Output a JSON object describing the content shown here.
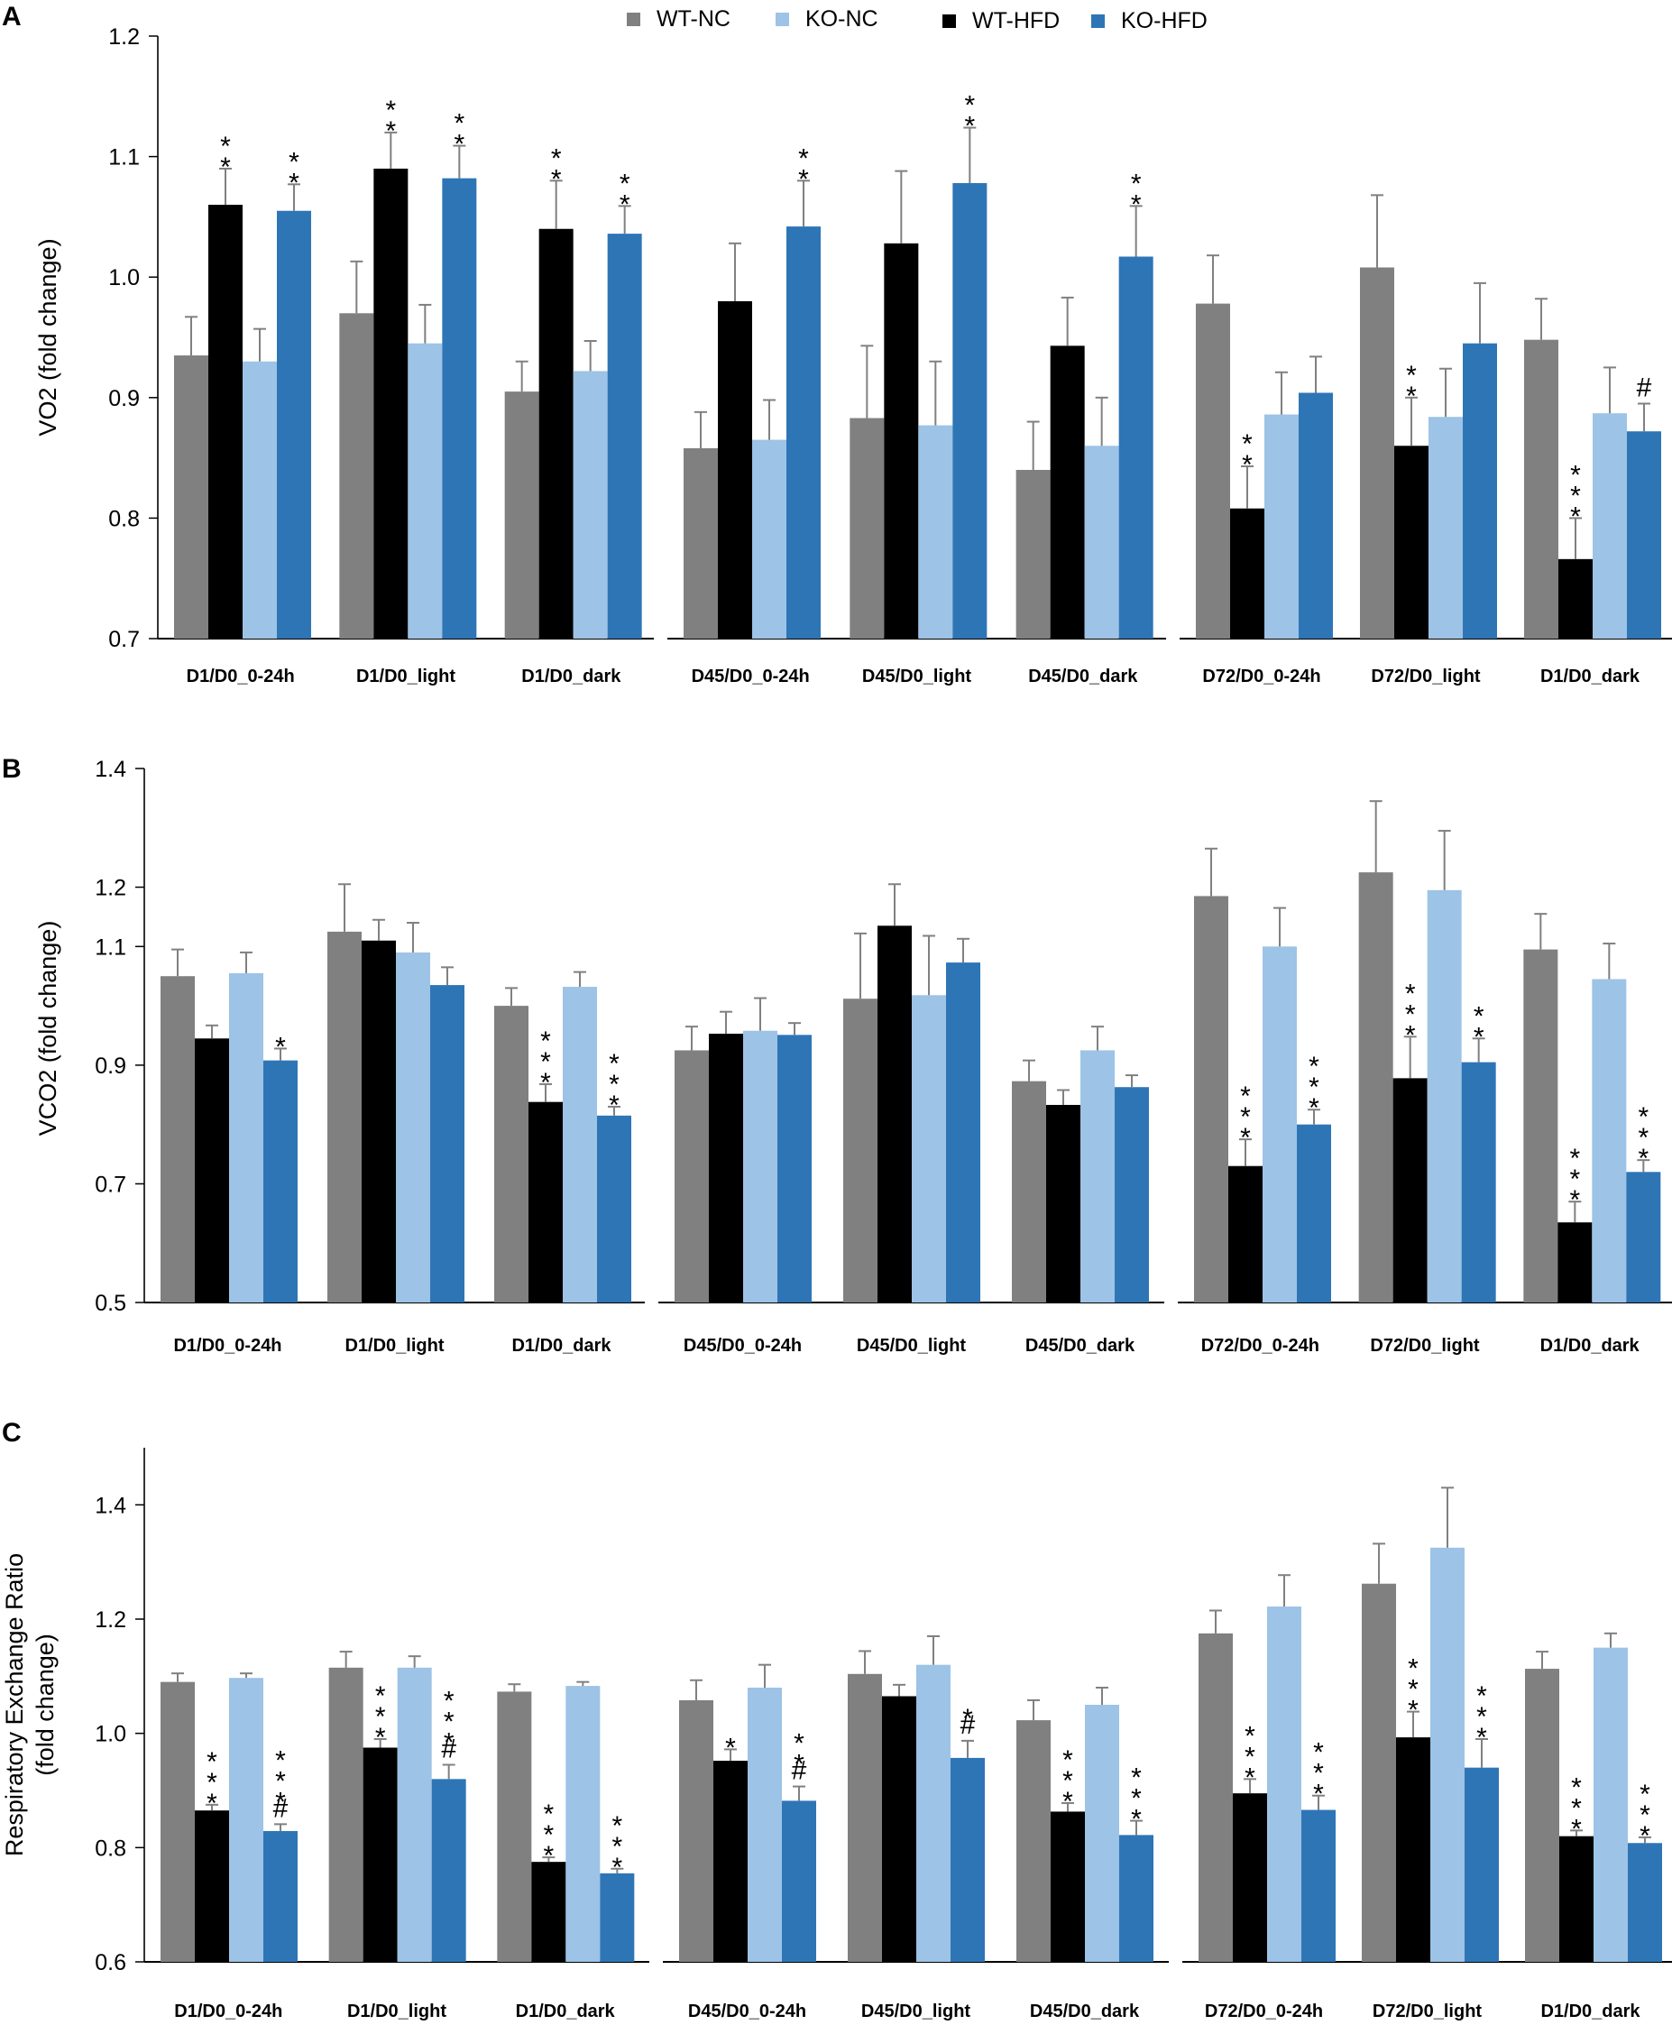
{
  "legend": [
    {
      "name": "WT-NC",
      "color": "#808080"
    },
    {
      "name": "KO-NC",
      "color": "#9DC3E6"
    },
    {
      "name": "WT-HFD",
      "color": "#000000"
    },
    {
      "name": "KO-HFD",
      "color": "#2E75B6"
    }
  ],
  "chart_data": [
    {
      "type": "bar",
      "panel": "A",
      "ylabel": "VO2 (fold change)",
      "ylim": [
        0.7,
        1.2
      ],
      "yticks": [
        "0.7",
        "0.8",
        "0.9",
        "1.0",
        "1.1",
        "1.2"
      ],
      "series_order": [
        "WT-NC",
        "WT-HFD",
        "KO-NC",
        "KO-HFD"
      ],
      "groups": [
        {
          "categories": [
            {
              "label": "D1/D0_0-24h",
              "values": [
                0.935,
                1.06,
                0.93,
                1.055
              ],
              "errors": [
                0.032,
                0.03,
                0.027,
                0.022
              ],
              "sig": [
                "",
                "**",
                "",
                "**"
              ]
            },
            {
              "label": "D1/D0_light",
              "values": [
                0.97,
                1.09,
                0.945,
                1.082
              ],
              "errors": [
                0.043,
                0.03,
                0.032,
                0.027
              ],
              "sig": [
                "",
                "**",
                "",
                "**"
              ]
            },
            {
              "label": "D1/D0_dark",
              "values": [
                0.905,
                1.04,
                0.922,
                1.036
              ],
              "errors": [
                0.025,
                0.04,
                0.025,
                0.023
              ],
              "sig": [
                "",
                "**",
                "",
                "**"
              ]
            }
          ]
        },
        {
          "categories": [
            {
              "label": "D45/D0_0-24h",
              "values": [
                0.858,
                0.98,
                0.865,
                1.042
              ],
              "errors": [
                0.03,
                0.048,
                0.033,
                0.038
              ],
              "sig": [
                "",
                "",
                "",
                "**"
              ]
            },
            {
              "label": "D45/D0_light",
              "values": [
                0.883,
                1.028,
                0.877,
                1.078
              ],
              "errors": [
                0.06,
                0.06,
                0.053,
                0.046
              ],
              "sig": [
                "",
                "",
                "",
                "**"
              ]
            },
            {
              "label": "D45/D0_dark",
              "values": [
                0.84,
                0.943,
                0.86,
                1.017
              ],
              "errors": [
                0.04,
                0.04,
                0.04,
                0.042
              ],
              "sig": [
                "",
                "",
                "",
                "**"
              ]
            }
          ]
        },
        {
          "categories": [
            {
              "label": "D72/D0_0-24h",
              "values": [
                0.978,
                0.808,
                0.886,
                0.904
              ],
              "errors": [
                0.04,
                0.035,
                0.035,
                0.03
              ],
              "sig": [
                "",
                "**",
                "",
                ""
              ]
            },
            {
              "label": "D72/D0_light",
              "values": [
                1.008,
                0.86,
                0.884,
                0.945
              ],
              "errors": [
                0.06,
                0.04,
                0.04,
                0.05
              ],
              "sig": [
                "",
                "**",
                "",
                ""
              ]
            },
            {
              "label": "D1/D0_dark",
              "values": [
                0.948,
                0.766,
                0.887,
                0.872
              ],
              "errors": [
                0.034,
                0.034,
                0.038,
                0.023
              ],
              "sig": [
                "",
                "***",
                "",
                "#"
              ]
            }
          ]
        }
      ]
    },
    {
      "type": "bar",
      "panel": "B",
      "ylabel": "VCO2 (fold change)",
      "ylim": [
        0.5,
        1.4
      ],
      "yticks": [
        "0.5",
        "0.7",
        "0.9",
        "1.1",
        "1.2",
        "1.4"
      ],
      "series_order": [
        "WT-NC",
        "WT-HFD",
        "KO-NC",
        "KO-HFD"
      ],
      "groups": [
        {
          "categories": [
            {
              "label": "D1/D0_0-24h",
              "values": [
                1.05,
                0.945,
                1.055,
                0.908
              ],
              "errors": [
                0.045,
                0.022,
                0.035,
                0.02
              ],
              "sig": [
                "",
                "",
                "",
                "*"
              ]
            },
            {
              "label": "D1/D0_light",
              "values": [
                1.125,
                1.11,
                1.09,
                1.035
              ],
              "errors": [
                0.08,
                0.035,
                0.05,
                0.03
              ],
              "sig": [
                "",
                "",
                "",
                ""
              ]
            },
            {
              "label": "D1/D0_dark",
              "values": [
                1.0,
                0.838,
                1.032,
                0.815
              ],
              "errors": [
                0.03,
                0.03,
                0.025,
                0.015
              ],
              "sig": [
                "",
                "***",
                "",
                "***"
              ]
            }
          ]
        },
        {
          "categories": [
            {
              "label": "D45/D0_0-24h",
              "values": [
                0.925,
                0.953,
                0.958,
                0.951
              ],
              "errors": [
                0.04,
                0.037,
                0.055,
                0.02
              ],
              "sig": [
                "",
                "",
                "",
                ""
              ]
            },
            {
              "label": "D45/D0_light",
              "values": [
                1.012,
                1.135,
                1.018,
                1.073
              ],
              "errors": [
                0.11,
                0.07,
                0.1,
                0.04
              ],
              "sig": [
                "",
                "",
                "",
                ""
              ]
            },
            {
              "label": "D45/D0_dark",
              "values": [
                0.873,
                0.833,
                0.925,
                0.863
              ],
              "errors": [
                0.035,
                0.025,
                0.04,
                0.02
              ],
              "sig": [
                "",
                "",
                "",
                ""
              ]
            }
          ]
        },
        {
          "categories": [
            {
              "label": "D72/D0_0-24h",
              "values": [
                1.185,
                0.73,
                1.1,
                0.8
              ],
              "errors": [
                0.08,
                0.045,
                0.065,
                0.025
              ],
              "sig": [
                "",
                "***",
                "",
                "***"
              ]
            },
            {
              "label": "D72/D0_light",
              "values": [
                1.225,
                0.878,
                1.195,
                0.905
              ],
              "errors": [
                0.12,
                0.07,
                0.1,
                0.04
              ],
              "sig": [
                "",
                "***",
                "",
                "**"
              ]
            },
            {
              "label": "D1/D0_dark",
              "values": [
                1.095,
                0.635,
                1.045,
                0.72
              ],
              "errors": [
                0.06,
                0.035,
                0.06,
                0.02
              ],
              "sig": [
                "",
                "***",
                "",
                "***"
              ]
            }
          ]
        }
      ]
    },
    {
      "type": "bar",
      "panel": "C",
      "ylabel": [
        "Respiratory Exchange  Ratio",
        "(fold change)"
      ],
      "ylim": [
        0.6,
        1.5
      ],
      "yticks": [
        "0.6",
        "0.8",
        "1.0",
        "1.2",
        "1.4"
      ],
      "series_order": [
        "WT-NC",
        "WT-HFD",
        "KO-NC",
        "KO-HFD"
      ],
      "groups": [
        {
          "categories": [
            {
              "label": "D1/D0_0-24h",
              "values": [
                1.09,
                0.865,
                1.097,
                0.829
              ],
              "errors": [
                0.015,
                0.01,
                0.008,
                0.012
              ],
              "sig": [
                "",
                "***",
                "",
                "***#"
              ]
            },
            {
              "label": "D1/D0_light",
              "values": [
                1.115,
                0.975,
                1.115,
                0.92
              ],
              "errors": [
                0.028,
                0.015,
                0.02,
                0.025
              ],
              "sig": [
                "",
                "***",
                "",
                "***#"
              ]
            },
            {
              "label": "D1/D0_dark",
              "values": [
                1.073,
                0.775,
                1.083,
                0.755
              ],
              "errors": [
                0.013,
                0.008,
                0.007,
                0.008
              ],
              "sig": [
                "",
                "***",
                "",
                "***"
              ]
            }
          ]
        },
        {
          "categories": [
            {
              "label": "D45/D0_0-24h",
              "values": [
                1.058,
                0.952,
                1.08,
                0.882
              ],
              "errors": [
                0.035,
                0.02,
                0.04,
                0.025
              ],
              "sig": [
                "",
                "*",
                "",
                "**#"
              ]
            },
            {
              "label": "D45/D0_light",
              "values": [
                1.104,
                1.065,
                1.12,
                0.957
              ],
              "errors": [
                0.04,
                0.02,
                0.05,
                0.03
              ],
              "sig": [
                "",
                "",
                "",
                "*#"
              ]
            },
            {
              "label": "D45/D0_dark",
              "values": [
                1.023,
                0.863,
                1.05,
                0.822
              ],
              "errors": [
                0.035,
                0.015,
                0.03,
                0.025
              ],
              "sig": [
                "",
                "***",
                "",
                "***"
              ]
            }
          ]
        },
        {
          "categories": [
            {
              "label": "D72/D0_0-24h",
              "values": [
                1.175,
                0.895,
                1.222,
                0.866
              ],
              "errors": [
                0.04,
                0.025,
                0.055,
                0.025
              ],
              "sig": [
                "",
                "***",
                "",
                "***"
              ]
            },
            {
              "label": "D72/D0_light",
              "values": [
                1.262,
                0.993,
                1.325,
                0.94
              ],
              "errors": [
                0.07,
                0.045,
                0.105,
                0.05
              ],
              "sig": [
                "",
                "***",
                "",
                "***"
              ]
            },
            {
              "label": "D1/D0_dark",
              "values": [
                1.113,
                0.82,
                1.15,
                0.808
              ],
              "errors": [
                0.03,
                0.01,
                0.025,
                0.01
              ],
              "sig": [
                "",
                "***",
                "",
                "***"
              ]
            }
          ]
        }
      ]
    }
  ]
}
